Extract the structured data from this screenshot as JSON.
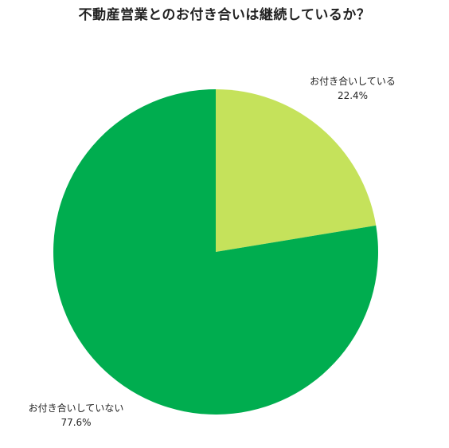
{
  "chart_data": {
    "type": "pie",
    "title": "不動産営業とのお付き合いは継続しているか？",
    "slices": [
      {
        "label": "お付き合いしている",
        "value": 22.4,
        "value_text": "22.4%",
        "color": "#c5e25b"
      },
      {
        "label": "お付き合いしていない",
        "value": 77.6,
        "value_text": "77.6%",
        "color": "#00ad4f"
      }
    ],
    "start_angle": "12 o'clock",
    "direction": "clockwise",
    "legend": "none"
  }
}
